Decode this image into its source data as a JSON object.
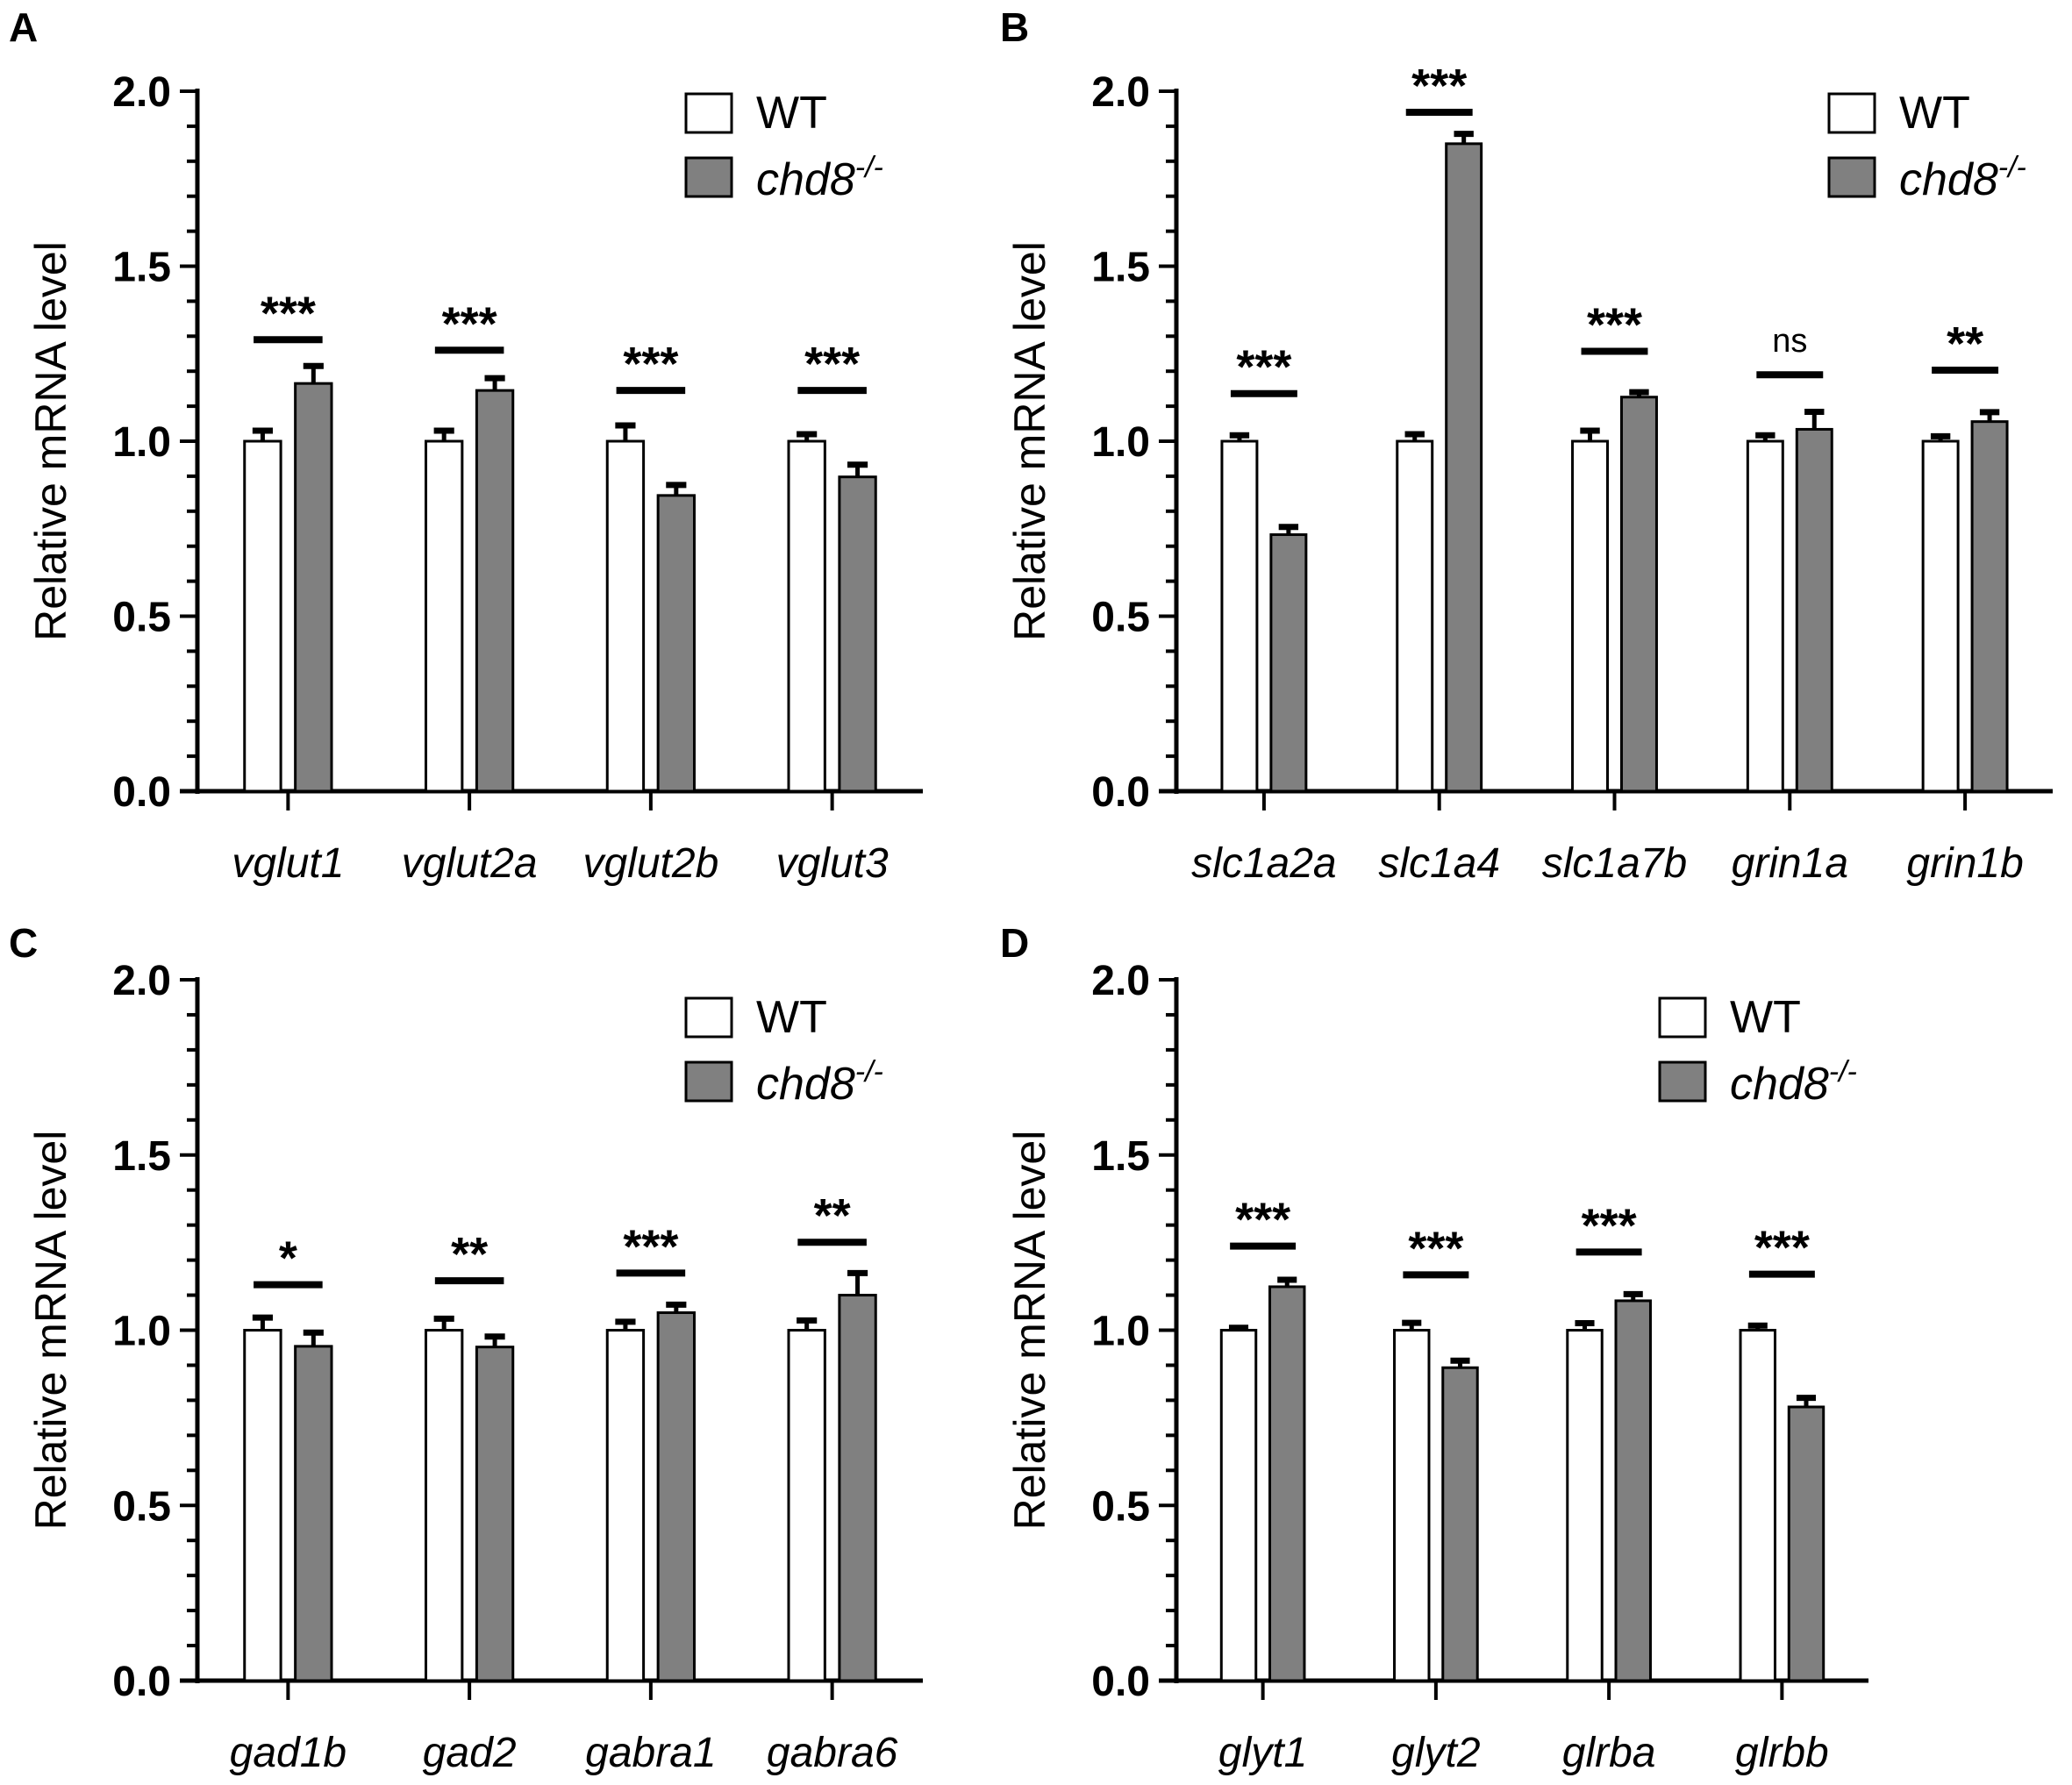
{
  "figure": {
    "legend": {
      "wt_label": "WT",
      "mut_label_base": "chd8",
      "mut_label_sup": "-/-"
    },
    "colors": {
      "wt": "#ffffff",
      "mut": "#808080",
      "axis": "#000000"
    }
  },
  "chart_data": [
    {
      "panel": "A",
      "type": "bar",
      "title": "",
      "xlabel": "",
      "ylabel": "Relative mRNA level",
      "ylim": [
        0,
        2.0
      ],
      "yticks": [
        "0.0",
        "0.5",
        "1.0",
        "1.5",
        "2.0"
      ],
      "minor_tick_step": 0.1,
      "legend_position": "top-right",
      "categories": [
        "vglut1",
        "vglut2a",
        "vglut2b",
        "vglut3"
      ],
      "series": [
        {
          "name": "WT",
          "values": [
            1.0,
            1.0,
            1.0,
            1.0
          ],
          "errors": [
            0.03,
            0.03,
            0.045,
            0.02
          ]
        },
        {
          "name": "chd8-/-",
          "values": [
            1.165,
            1.145,
            0.845,
            0.898
          ],
          "errors": [
            0.05,
            0.035,
            0.03,
            0.035
          ]
        }
      ],
      "significance": [
        "***",
        "***",
        "***",
        "***"
      ],
      "sig_bar_y": [
        1.29,
        1.26,
        1.145,
        1.145
      ]
    },
    {
      "panel": "B",
      "type": "bar",
      "title": "",
      "xlabel": "",
      "ylabel": "Relative mRNA level",
      "ylim": [
        0,
        2.0
      ],
      "yticks": [
        "0.0",
        "0.5",
        "1.0",
        "1.5",
        "2.0"
      ],
      "minor_tick_step": 0.1,
      "legend_position": "top-right",
      "categories": [
        "slc1a2a",
        "slc1a4",
        "slc1a7b",
        "grin1a",
        "grin1b"
      ],
      "series": [
        {
          "name": "WT",
          "values": [
            1.0,
            1.0,
            1.0,
            1.0,
            1.0
          ],
          "errors": [
            0.017,
            0.02,
            0.03,
            0.017,
            0.014
          ]
        },
        {
          "name": "chd8-/-",
          "values": [
            0.733,
            1.85,
            1.126,
            1.034,
            1.056
          ],
          "errors": [
            0.022,
            0.028,
            0.014,
            0.05,
            0.027
          ]
        }
      ],
      "significance": [
        "***",
        "***",
        "***",
        "ns",
        "**"
      ],
      "sig_bar_y": [
        1.136,
        1.94,
        1.257,
        1.19,
        1.203
      ]
    },
    {
      "panel": "C",
      "type": "bar",
      "title": "",
      "xlabel": "",
      "ylabel": "Relative mRNA level",
      "ylim": [
        0,
        2.0
      ],
      "yticks": [
        "0.0",
        "0.5",
        "1.0",
        "1.5",
        "2.0"
      ],
      "minor_tick_step": 0.1,
      "legend_position": "top-right",
      "categories": [
        "gad1b",
        "gad2",
        "gabra1",
        "gabra6"
      ],
      "series": [
        {
          "name": "WT",
          "values": [
            1.0,
            1.0,
            1.0,
            1.0
          ],
          "errors": [
            0.036,
            0.033,
            0.024,
            0.028
          ]
        },
        {
          "name": "chd8-/-",
          "values": [
            0.954,
            0.952,
            1.05,
            1.1
          ],
          "errors": [
            0.039,
            0.03,
            0.023,
            0.063
          ]
        }
      ],
      "significance": [
        "*",
        "**",
        "***",
        "**"
      ],
      "sig_bar_y": [
        1.13,
        1.141,
        1.163,
        1.251
      ]
    },
    {
      "panel": "D",
      "type": "bar",
      "title": "",
      "xlabel": "",
      "ylabel": "Relative mRNA level",
      "ylim": [
        0,
        2.0
      ],
      "yticks": [
        "0.0",
        "0.5",
        "1.0",
        "1.5",
        "2.0"
      ],
      "minor_tick_step": 0.1,
      "legend_position": "top-right",
      "categories": [
        "glyt1",
        "glyt2",
        "glrba",
        "glrbb"
      ],
      "series": [
        {
          "name": "WT",
          "values": [
            1.0,
            1.0,
            1.0,
            1.0
          ],
          "errors": [
            0.007,
            0.021,
            0.02,
            0.013
          ]
        },
        {
          "name": "chd8-/-",
          "values": [
            1.124,
            0.893,
            1.084,
            0.781
          ],
          "errors": [
            0.02,
            0.02,
            0.019,
            0.026
          ]
        }
      ],
      "significance": [
        "***",
        "***",
        "***",
        "***"
      ],
      "sig_bar_y": [
        1.24,
        1.158,
        1.223,
        1.16
      ]
    }
  ]
}
